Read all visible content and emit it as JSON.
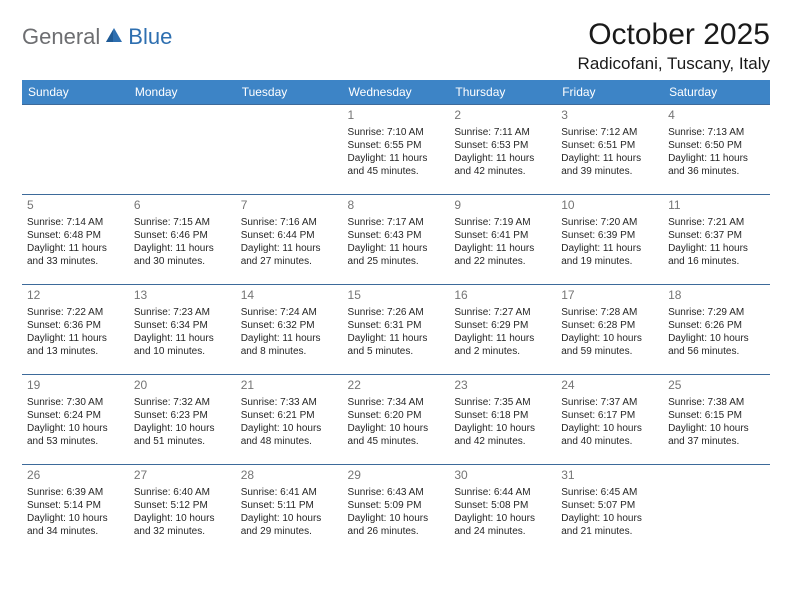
{
  "brand": {
    "part1": "General",
    "part2": "Blue"
  },
  "title": "October 2025",
  "location": "Radicofani, Tuscany, Italy",
  "colors": {
    "header_bg": "#3d84c6",
    "header_fg": "#ffffff",
    "cell_border": "#3d6a9a",
    "daynum": "#757575",
    "text": "#262626",
    "brand_gray": "#6d6e71",
    "brand_blue": "#2e6fb0",
    "page_bg": "#ffffff"
  },
  "day_headers": [
    "Sunday",
    "Monday",
    "Tuesday",
    "Wednesday",
    "Thursday",
    "Friday",
    "Saturday"
  ],
  "weeks": [
    [
      {
        "num": "",
        "sunrise": "",
        "sunset": "",
        "daylight": ""
      },
      {
        "num": "",
        "sunrise": "",
        "sunset": "",
        "daylight": ""
      },
      {
        "num": "",
        "sunrise": "",
        "sunset": "",
        "daylight": ""
      },
      {
        "num": "1",
        "sunrise": "Sunrise: 7:10 AM",
        "sunset": "Sunset: 6:55 PM",
        "daylight": "Daylight: 11 hours and 45 minutes."
      },
      {
        "num": "2",
        "sunrise": "Sunrise: 7:11 AM",
        "sunset": "Sunset: 6:53 PM",
        "daylight": "Daylight: 11 hours and 42 minutes."
      },
      {
        "num": "3",
        "sunrise": "Sunrise: 7:12 AM",
        "sunset": "Sunset: 6:51 PM",
        "daylight": "Daylight: 11 hours and 39 minutes."
      },
      {
        "num": "4",
        "sunrise": "Sunrise: 7:13 AM",
        "sunset": "Sunset: 6:50 PM",
        "daylight": "Daylight: 11 hours and 36 minutes."
      }
    ],
    [
      {
        "num": "5",
        "sunrise": "Sunrise: 7:14 AM",
        "sunset": "Sunset: 6:48 PM",
        "daylight": "Daylight: 11 hours and 33 minutes."
      },
      {
        "num": "6",
        "sunrise": "Sunrise: 7:15 AM",
        "sunset": "Sunset: 6:46 PM",
        "daylight": "Daylight: 11 hours and 30 minutes."
      },
      {
        "num": "7",
        "sunrise": "Sunrise: 7:16 AM",
        "sunset": "Sunset: 6:44 PM",
        "daylight": "Daylight: 11 hours and 27 minutes."
      },
      {
        "num": "8",
        "sunrise": "Sunrise: 7:17 AM",
        "sunset": "Sunset: 6:43 PM",
        "daylight": "Daylight: 11 hours and 25 minutes."
      },
      {
        "num": "9",
        "sunrise": "Sunrise: 7:19 AM",
        "sunset": "Sunset: 6:41 PM",
        "daylight": "Daylight: 11 hours and 22 minutes."
      },
      {
        "num": "10",
        "sunrise": "Sunrise: 7:20 AM",
        "sunset": "Sunset: 6:39 PM",
        "daylight": "Daylight: 11 hours and 19 minutes."
      },
      {
        "num": "11",
        "sunrise": "Sunrise: 7:21 AM",
        "sunset": "Sunset: 6:37 PM",
        "daylight": "Daylight: 11 hours and 16 minutes."
      }
    ],
    [
      {
        "num": "12",
        "sunrise": "Sunrise: 7:22 AM",
        "sunset": "Sunset: 6:36 PM",
        "daylight": "Daylight: 11 hours and 13 minutes."
      },
      {
        "num": "13",
        "sunrise": "Sunrise: 7:23 AM",
        "sunset": "Sunset: 6:34 PM",
        "daylight": "Daylight: 11 hours and 10 minutes."
      },
      {
        "num": "14",
        "sunrise": "Sunrise: 7:24 AM",
        "sunset": "Sunset: 6:32 PM",
        "daylight": "Daylight: 11 hours and 8 minutes."
      },
      {
        "num": "15",
        "sunrise": "Sunrise: 7:26 AM",
        "sunset": "Sunset: 6:31 PM",
        "daylight": "Daylight: 11 hours and 5 minutes."
      },
      {
        "num": "16",
        "sunrise": "Sunrise: 7:27 AM",
        "sunset": "Sunset: 6:29 PM",
        "daylight": "Daylight: 11 hours and 2 minutes."
      },
      {
        "num": "17",
        "sunrise": "Sunrise: 7:28 AM",
        "sunset": "Sunset: 6:28 PM",
        "daylight": "Daylight: 10 hours and 59 minutes."
      },
      {
        "num": "18",
        "sunrise": "Sunrise: 7:29 AM",
        "sunset": "Sunset: 6:26 PM",
        "daylight": "Daylight: 10 hours and 56 minutes."
      }
    ],
    [
      {
        "num": "19",
        "sunrise": "Sunrise: 7:30 AM",
        "sunset": "Sunset: 6:24 PM",
        "daylight": "Daylight: 10 hours and 53 minutes."
      },
      {
        "num": "20",
        "sunrise": "Sunrise: 7:32 AM",
        "sunset": "Sunset: 6:23 PM",
        "daylight": "Daylight: 10 hours and 51 minutes."
      },
      {
        "num": "21",
        "sunrise": "Sunrise: 7:33 AM",
        "sunset": "Sunset: 6:21 PM",
        "daylight": "Daylight: 10 hours and 48 minutes."
      },
      {
        "num": "22",
        "sunrise": "Sunrise: 7:34 AM",
        "sunset": "Sunset: 6:20 PM",
        "daylight": "Daylight: 10 hours and 45 minutes."
      },
      {
        "num": "23",
        "sunrise": "Sunrise: 7:35 AM",
        "sunset": "Sunset: 6:18 PM",
        "daylight": "Daylight: 10 hours and 42 minutes."
      },
      {
        "num": "24",
        "sunrise": "Sunrise: 7:37 AM",
        "sunset": "Sunset: 6:17 PM",
        "daylight": "Daylight: 10 hours and 40 minutes."
      },
      {
        "num": "25",
        "sunrise": "Sunrise: 7:38 AM",
        "sunset": "Sunset: 6:15 PM",
        "daylight": "Daylight: 10 hours and 37 minutes."
      }
    ],
    [
      {
        "num": "26",
        "sunrise": "Sunrise: 6:39 AM",
        "sunset": "Sunset: 5:14 PM",
        "daylight": "Daylight: 10 hours and 34 minutes."
      },
      {
        "num": "27",
        "sunrise": "Sunrise: 6:40 AM",
        "sunset": "Sunset: 5:12 PM",
        "daylight": "Daylight: 10 hours and 32 minutes."
      },
      {
        "num": "28",
        "sunrise": "Sunrise: 6:41 AM",
        "sunset": "Sunset: 5:11 PM",
        "daylight": "Daylight: 10 hours and 29 minutes."
      },
      {
        "num": "29",
        "sunrise": "Sunrise: 6:43 AM",
        "sunset": "Sunset: 5:09 PM",
        "daylight": "Daylight: 10 hours and 26 minutes."
      },
      {
        "num": "30",
        "sunrise": "Sunrise: 6:44 AM",
        "sunset": "Sunset: 5:08 PM",
        "daylight": "Daylight: 10 hours and 24 minutes."
      },
      {
        "num": "31",
        "sunrise": "Sunrise: 6:45 AM",
        "sunset": "Sunset: 5:07 PM",
        "daylight": "Daylight: 10 hours and 21 minutes."
      },
      {
        "num": "",
        "sunrise": "",
        "sunset": "",
        "daylight": ""
      }
    ]
  ]
}
